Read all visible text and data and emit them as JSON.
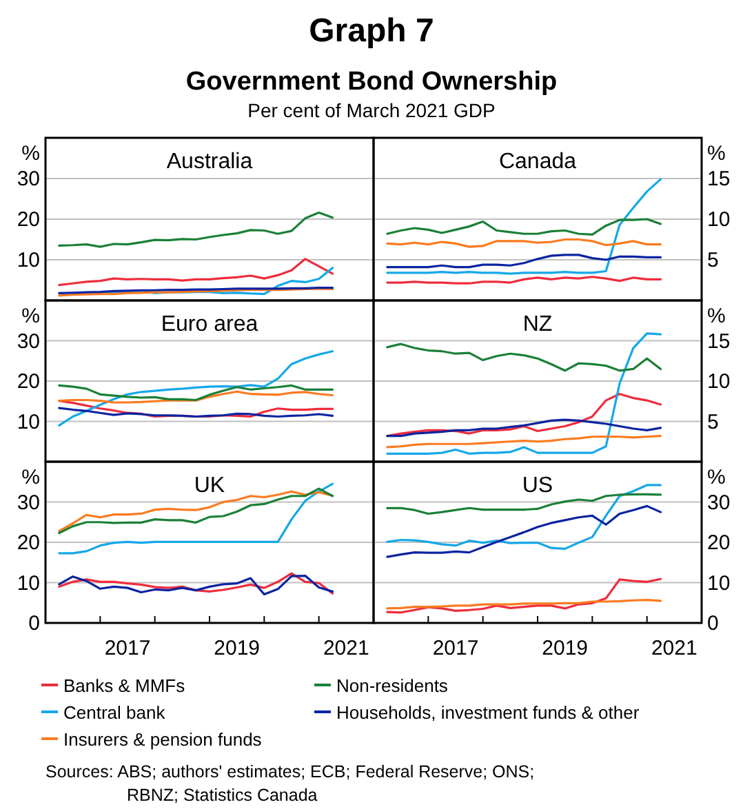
{
  "chart_data": [
    {
      "type": "other",
      "title": "Graph 7",
      "subtitle": "Government Bond Ownership",
      "annotations": [
        "Per cent of March 2021 GDP",
        "Sources: ABS; authors' estimates; ECB; Federal Reserve; ONS; RBNZ; Statistics Canada"
      ]
    },
    {
      "type": "line",
      "title": "Australia",
      "ylabel": "%",
      "xlim": [
        2016,
        2022
      ],
      "ylim": [
        0,
        40
      ],
      "yticks": [
        10,
        20,
        30
      ],
      "grid": "y",
      "tick_labels": "y",
      "legend": "bottom",
      "x": [
        2016.25,
        2016.5,
        2016.75,
        2017,
        2017.25,
        2017.5,
        2017.75,
        2018,
        2018.25,
        2018.5,
        2018.75,
        2019,
        2019.25,
        2019.5,
        2019.75,
        2020,
        2020.25,
        2020.5,
        2020.75,
        2021,
        2021.25
      ],
      "series": [
        {
          "name": "Banks & MMFs",
          "color": "#ee2c3c",
          "values": [
            3.8,
            4.2,
            4.6,
            4.8,
            5.4,
            5.2,
            5.3,
            5.2,
            5.2,
            4.9,
            5.2,
            5.2,
            5.5,
            5.7,
            6.1,
            5.4,
            6.2,
            7.4,
            10.2,
            8.4,
            6.6
          ]
        },
        {
          "name": "Central bank",
          "color": "#15a8e8",
          "values": [
            null,
            null,
            null,
            1.9,
            2.0,
            2.1,
            2.4,
            1.8,
            2.0,
            2.0,
            2.1,
            2.1,
            1.8,
            1.9,
            1.7,
            1.6,
            3.6,
            4.8,
            4.5,
            5.3,
            8.0
          ]
        },
        {
          "name": "Insurers & pension funds",
          "color": "#fb7a1f",
          "values": [
            1.2,
            1.4,
            1.5,
            1.6,
            1.6,
            1.8,
            1.9,
            2.0,
            2.0,
            2.1,
            2.2,
            2.3,
            2.4,
            2.5,
            2.6,
            2.6,
            2.6,
            2.7,
            2.8,
            2.9,
            2.8
          ]
        },
        {
          "name": "Non-residents",
          "color": "#1a8037",
          "values": [
            13.5,
            13.6,
            13.8,
            13.2,
            13.9,
            13.8,
            14.3,
            14.9,
            14.8,
            15.1,
            15.0,
            15.6,
            16.1,
            16.5,
            17.3,
            17.2,
            16.4,
            17.1,
            20.2,
            21.6,
            20.4
          ]
        },
        {
          "name": "Households, investment funds & other",
          "color": "#0b24a0",
          "values": [
            1.8,
            1.9,
            2.0,
            2.1,
            2.3,
            2.4,
            2.5,
            2.5,
            2.6,
            2.6,
            2.7,
            2.7,
            2.8,
            2.9,
            2.9,
            2.9,
            2.9,
            3.0,
            3.0,
            3.1,
            3.1
          ]
        }
      ]
    },
    {
      "type": "line",
      "title": "Canada",
      "ylabel": "%",
      "xlim": [
        2016,
        2022
      ],
      "ylim": [
        0,
        20
      ],
      "yticks": [
        5,
        10,
        15
      ],
      "grid": "y",
      "tick_labels": "y",
      "x": [
        2016.25,
        2016.5,
        2016.75,
        2017,
        2017.25,
        2017.5,
        2017.75,
        2018,
        2018.25,
        2018.5,
        2018.75,
        2019,
        2019.25,
        2019.5,
        2019.75,
        2020,
        2020.25,
        2020.5,
        2020.75,
        2021,
        2021.25
      ],
      "series": [
        {
          "color": "#ee2c3c",
          "values": [
            2.2,
            2.2,
            2.3,
            2.2,
            2.2,
            2.1,
            2.1,
            2.3,
            2.3,
            2.2,
            2.6,
            2.8,
            2.6,
            2.8,
            2.7,
            2.9,
            2.7,
            2.4,
            2.8,
            2.6,
            2.6
          ]
        },
        {
          "color": "#15a8e8",
          "values": [
            3.4,
            3.4,
            3.4,
            3.4,
            3.5,
            3.4,
            3.5,
            3.4,
            3.4,
            3.3,
            3.4,
            3.4,
            3.4,
            3.5,
            3.4,
            3.4,
            3.6,
            9.3,
            11.4,
            13.4,
            14.9
          ]
        },
        {
          "color": "#fb7a1f",
          "values": [
            7.0,
            6.9,
            7.1,
            6.9,
            7.2,
            7.0,
            6.6,
            6.7,
            7.3,
            7.3,
            7.3,
            7.1,
            7.2,
            7.5,
            7.5,
            7.3,
            6.8,
            7.0,
            7.3,
            6.9,
            6.9
          ]
        },
        {
          "color": "#1a8037",
          "values": [
            8.2,
            8.6,
            8.9,
            8.7,
            8.3,
            8.7,
            9.1,
            9.7,
            8.6,
            8.4,
            8.2,
            8.2,
            8.5,
            8.6,
            8.2,
            8.1,
            9.2,
            9.9,
            9.9,
            10.0,
            9.4
          ]
        },
        {
          "color": "#0b24a0",
          "values": [
            4.1,
            4.1,
            4.1,
            4.1,
            4.3,
            4.1,
            4.1,
            4.4,
            4.4,
            4.3,
            4.6,
            5.1,
            5.5,
            5.6,
            5.6,
            5.2,
            5.0,
            5.4,
            5.4,
            5.3,
            5.3
          ]
        }
      ]
    },
    {
      "type": "line",
      "title": "Euro area",
      "ylabel": "%",
      "xlim": [
        2016,
        2022
      ],
      "ylim": [
        0,
        40
      ],
      "yticks": [
        10,
        20,
        30
      ],
      "grid": "y",
      "tick_labels": "y",
      "x": [
        2016.25,
        2016.5,
        2016.75,
        2017,
        2017.25,
        2017.5,
        2017.75,
        2018,
        2018.25,
        2018.5,
        2018.75,
        2019,
        2019.25,
        2019.5,
        2019.75,
        2020,
        2020.25,
        2020.5,
        2020.75,
        2021,
        2021.25
      ],
      "series": [
        {
          "color": "#ee2c3c",
          "values": [
            15.1,
            14.6,
            13.9,
            13.2,
            12.7,
            12.1,
            11.9,
            11.2,
            11.4,
            11.4,
            11.2,
            11.2,
            11.5,
            11.4,
            11.2,
            12.4,
            13.2,
            12.9,
            12.9,
            13.1,
            13.1
          ]
        },
        {
          "color": "#15a8e8",
          "values": [
            9.0,
            11.2,
            12.6,
            14.1,
            15.5,
            16.7,
            17.3,
            17.6,
            17.9,
            18.1,
            18.4,
            18.6,
            18.7,
            18.6,
            19.0,
            18.6,
            20.6,
            24.2,
            25.6,
            26.6,
            27.4
          ]
        },
        {
          "color": "#fb7a1f",
          "values": [
            15.1,
            15.3,
            15.3,
            15.1,
            14.7,
            14.7,
            14.8,
            15.0,
            15.2,
            15.2,
            15.2,
            16.1,
            16.8,
            17.4,
            16.8,
            16.7,
            16.6,
            17.1,
            17.3,
            16.8,
            16.5
          ]
        },
        {
          "color": "#1a8037",
          "values": [
            18.9,
            18.6,
            18.1,
            16.7,
            16.4,
            16.1,
            15.9,
            16.0,
            15.5,
            15.5,
            15.3,
            16.6,
            17.6,
            18.5,
            17.9,
            18.2,
            18.5,
            18.9,
            17.9,
            17.9,
            17.9
          ]
        },
        {
          "color": "#0b24a0",
          "values": [
            13.3,
            12.9,
            12.6,
            12.1,
            11.6,
            12.0,
            11.8,
            11.5,
            11.5,
            11.4,
            11.2,
            11.4,
            11.5,
            11.9,
            11.8,
            11.4,
            11.2,
            11.4,
            11.5,
            11.8,
            11.4
          ]
        }
      ]
    },
    {
      "type": "line",
      "title": "NZ",
      "ylabel": "%",
      "xlim": [
        2016,
        2022
      ],
      "ylim": [
        0,
        20
      ],
      "yticks": [
        5,
        10,
        15
      ],
      "grid": "y",
      "tick_labels": "y",
      "x": [
        2016.25,
        2016.5,
        2016.75,
        2017,
        2017.25,
        2017.5,
        2017.75,
        2018,
        2018.25,
        2018.5,
        2018.75,
        2019,
        2019.25,
        2019.5,
        2019.75,
        2020,
        2020.25,
        2020.5,
        2020.75,
        2021,
        2021.25
      ],
      "series": [
        {
          "color": "#ee2c3c",
          "values": [
            3.2,
            3.5,
            3.7,
            3.9,
            3.9,
            3.8,
            3.5,
            3.9,
            3.9,
            4.0,
            4.4,
            3.8,
            4.1,
            4.4,
            4.9,
            5.6,
            7.6,
            8.4,
            7.9,
            7.6,
            7.1
          ]
        },
        {
          "color": "#15a8e8",
          "values": [
            1.0,
            1.0,
            1.0,
            1.0,
            1.1,
            1.5,
            1.0,
            1.1,
            1.1,
            1.2,
            1.8,
            1.1,
            1.1,
            1.1,
            1.1,
            1.1,
            1.9,
            9.7,
            14.1,
            15.9,
            15.8
          ]
        },
        {
          "color": "#fb7a1f",
          "values": [
            1.8,
            1.9,
            2.1,
            2.2,
            2.2,
            2.2,
            2.2,
            2.3,
            2.4,
            2.5,
            2.6,
            2.5,
            2.6,
            2.8,
            2.9,
            3.1,
            3.1,
            3.1,
            3.0,
            3.1,
            3.2
          ]
        },
        {
          "color": "#1a8037",
          "values": [
            14.2,
            14.6,
            14.1,
            13.8,
            13.7,
            13.4,
            13.5,
            12.6,
            13.1,
            13.4,
            13.2,
            12.8,
            12.1,
            11.3,
            12.2,
            12.1,
            11.9,
            11.3,
            11.5,
            12.8,
            11.5
          ]
        },
        {
          "color": "#0b24a0",
          "values": [
            3.2,
            3.2,
            3.5,
            3.6,
            3.7,
            3.9,
            3.9,
            4.1,
            4.1,
            4.3,
            4.5,
            4.8,
            5.1,
            5.2,
            5.1,
            4.9,
            4.7,
            4.4,
            4.1,
            3.9,
            4.2
          ]
        }
      ]
    },
    {
      "type": "line",
      "title": "UK",
      "ylabel": "%",
      "xlim": [
        2016,
        2022
      ],
      "ylim": [
        0,
        40
      ],
      "yticks": [
        0,
        10,
        20,
        30
      ],
      "grid": "y",
      "xticks": [
        {
          "value": 2017,
          "label": null
        },
        {
          "value": 2017.5,
          "label": "2017"
        },
        {
          "value": 2018,
          "label": null
        },
        {
          "value": 2019,
          "label": null
        },
        {
          "value": 2019.5,
          "label": "2019"
        },
        {
          "value": 2020,
          "label": null
        },
        {
          "value": 2021,
          "label": null
        },
        {
          "value": 2021.5,
          "label": "2021"
        }
      ],
      "x": [
        2016.25,
        2016.5,
        2016.75,
        2017,
        2017.25,
        2017.5,
        2017.75,
        2018,
        2018.25,
        2018.5,
        2018.75,
        2019,
        2019.25,
        2019.5,
        2019.75,
        2020,
        2020.25,
        2020.5,
        2020.75,
        2021,
        2021.25
      ],
      "series": [
        {
          "color": "#ee2c3c",
          "values": [
            9.0,
            10.2,
            10.8,
            10.2,
            10.2,
            9.8,
            9.5,
            8.9,
            8.7,
            9.0,
            8.1,
            7.8,
            8.2,
            8.8,
            9.5,
            8.7,
            10.2,
            12.3,
            10.2,
            9.9,
            7.3
          ]
        },
        {
          "color": "#15a8e8",
          "values": [
            17.3,
            17.3,
            17.8,
            19.2,
            19.9,
            20.1,
            19.9,
            20.1,
            20.1,
            20.1,
            20.1,
            20.1,
            20.1,
            20.1,
            20.1,
            20.1,
            20.1,
            25.7,
            30.3,
            32.6,
            34.5
          ]
        },
        {
          "color": "#fb7a1f",
          "values": [
            22.8,
            24.7,
            26.8,
            26.2,
            26.9,
            26.9,
            27.1,
            28.1,
            28.3,
            28.1,
            28.0,
            28.7,
            30.0,
            30.5,
            31.5,
            31.2,
            31.8,
            32.6,
            31.8,
            32.4,
            31.6
          ]
        },
        {
          "color": "#1a8037",
          "values": [
            22.3,
            24.0,
            25.0,
            25.0,
            24.8,
            24.9,
            24.9,
            25.7,
            25.5,
            25.5,
            24.9,
            26.3,
            26.5,
            27.6,
            29.2,
            29.5,
            30.6,
            31.5,
            31.5,
            33.3,
            31.5
          ]
        },
        {
          "color": "#0b24a0",
          "values": [
            9.6,
            11.5,
            10.4,
            8.5,
            9.0,
            8.7,
            7.6,
            8.3,
            8.1,
            8.7,
            8.1,
            9.0,
            9.6,
            9.8,
            11.1,
            7.1,
            8.4,
            11.6,
            11.7,
            8.8,
            7.8
          ]
        }
      ]
    },
    {
      "type": "line",
      "title": "US",
      "ylabel": "%",
      "xlim": [
        2016,
        2022
      ],
      "ylim": [
        0,
        40
      ],
      "yticks": [
        0,
        10,
        20,
        30
      ],
      "grid": "y",
      "xticks": [
        {
          "value": 2017,
          "label": null
        },
        {
          "value": 2017.5,
          "label": "2017"
        },
        {
          "value": 2018,
          "label": null
        },
        {
          "value": 2019,
          "label": null
        },
        {
          "value": 2019.5,
          "label": "2019"
        },
        {
          "value": 2020,
          "label": null
        },
        {
          "value": 2021,
          "label": null
        },
        {
          "value": 2021.5,
          "label": "2021"
        }
      ],
      "x": [
        2016.25,
        2016.5,
        2016.75,
        2017,
        2017.25,
        2017.5,
        2017.75,
        2018,
        2018.25,
        2018.5,
        2018.75,
        2019,
        2019.25,
        2019.5,
        2019.75,
        2020,
        2020.25,
        2020.5,
        2020.75,
        2021,
        2021.25
      ],
      "series": [
        {
          "color": "#ee2c3c",
          "values": [
            2.7,
            2.6,
            3.2,
            3.9,
            3.6,
            3.0,
            3.2,
            3.5,
            4.3,
            3.7,
            4.0,
            4.3,
            4.3,
            3.6,
            4.6,
            4.9,
            6.1,
            10.8,
            10.4,
            10.2,
            10.9
          ]
        },
        {
          "color": "#15a8e8",
          "values": [
            20.1,
            20.6,
            20.5,
            20.1,
            19.5,
            19.2,
            20.4,
            19.9,
            20.4,
            19.8,
            19.9,
            19.9,
            18.6,
            18.4,
            19.9,
            21.3,
            26.6,
            31.5,
            32.7,
            34.2,
            34.2
          ]
        },
        {
          "color": "#fb7a1f",
          "values": [
            3.6,
            3.7,
            4.0,
            4.0,
            4.1,
            4.3,
            4.3,
            4.6,
            4.6,
            4.6,
            4.8,
            4.8,
            4.8,
            4.9,
            4.9,
            5.3,
            5.3,
            5.4,
            5.6,
            5.7,
            5.5
          ]
        },
        {
          "color": "#1a8037",
          "values": [
            28.5,
            28.5,
            28.0,
            27.1,
            27.5,
            28.0,
            28.5,
            28.1,
            28.1,
            28.1,
            28.1,
            28.3,
            29.4,
            30.1,
            30.6,
            30.3,
            31.5,
            31.8,
            31.9,
            31.9,
            31.8
          ]
        },
        {
          "color": "#0b24a0",
          "values": [
            16.4,
            17.0,
            17.5,
            17.4,
            17.4,
            17.7,
            17.5,
            18.8,
            20.1,
            21.3,
            22.5,
            23.8,
            24.8,
            25.5,
            26.2,
            26.6,
            24.4,
            27.1,
            28.0,
            29.0,
            27.5
          ]
        }
      ]
    }
  ]
}
